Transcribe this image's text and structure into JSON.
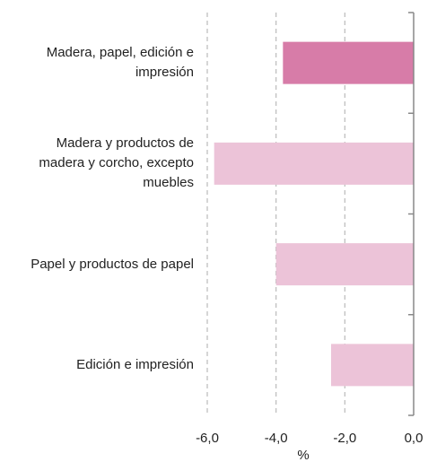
{
  "chart_data": {
    "type": "bar",
    "orientation": "horizontal",
    "categories": [
      "Madera, papel, edición e impresión",
      "Madera y productos de madera y corcho, excepto muebles",
      "Papel y productos de papel",
      "Edición e impresión"
    ],
    "category_lines": [
      [
        "Madera, papel, edición e",
        "impresión"
      ],
      [
        "Madera y productos de",
        "madera y corcho, excepto",
        "muebles"
      ],
      [
        "Papel y productos de papel"
      ],
      [
        "Edición e impresión"
      ]
    ],
    "values": [
      -3.8,
      -5.8,
      -4.0,
      -2.4
    ],
    "colors": [
      "#d77ca8",
      "#ecc3d8",
      "#ecc3d8",
      "#ecc3d8"
    ],
    "xlim": [
      -6.0,
      0.0
    ],
    "xticks": [
      -6.0,
      -4.0,
      -2.0,
      0.0
    ],
    "tick_labels": [
      "-6,0",
      "-4,0",
      "-2,0",
      "0,0"
    ],
    "xlabel": "%",
    "grid": "vertical dashed",
    "legend": "none",
    "colors_meta": {
      "grid": "#bbbbbb",
      "axis": "#888888",
      "text": "#222222"
    }
  }
}
